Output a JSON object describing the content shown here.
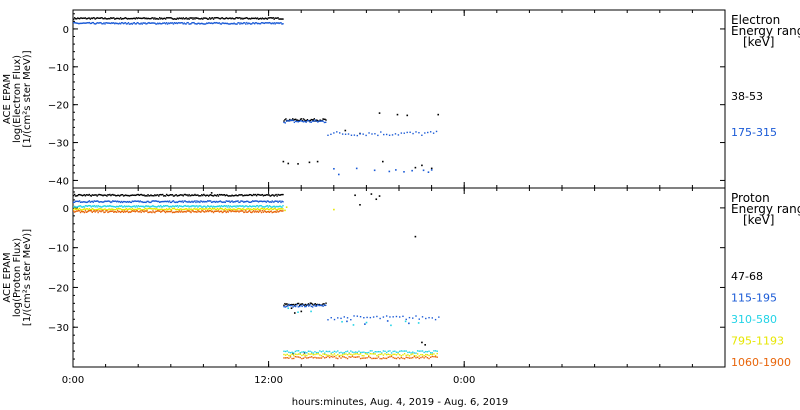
{
  "xlabel": "hours:minutes, Aug.  4, 2019 - Aug.  6, 2019",
  "chart_data": [
    {
      "type": "scatter",
      "name": "electron-panel",
      "ylabel_lines": [
        "ACE EPAM",
        "log(Electron Flux)",
        "[1/(cm²s ster MeV)]"
      ],
      "xlim": [
        0,
        40
      ],
      "ylim": [
        -42,
        5
      ],
      "x_ticks": [
        {
          "value": 0,
          "label": "0:00"
        },
        {
          "value": 12,
          "label": "12:00"
        },
        {
          "value": 24,
          "label": "0:00"
        }
      ],
      "y_ticks": [
        0,
        -10,
        -20,
        -30,
        -40
      ],
      "y_tick_labels": [
        "0",
        "−10",
        "−20",
        "−30",
        "−40"
      ],
      "legend_title_lines": [
        "Electron",
        "Energy ranges",
        "[keV]"
      ],
      "series": [
        {
          "name": "38-53",
          "color": "#000000",
          "segments": [
            {
              "x0": 0.0,
              "x1": 12.9,
              "y": 2.8,
              "jitter": 0.2,
              "step": 0.06
            },
            {
              "x0": 12.9,
              "x1": 15.5,
              "y": -24.0,
              "jitter": 0.3,
              "step": 0.06
            }
          ],
          "points": [
            [
              12.9,
              -35
            ],
            [
              13.2,
              -35.5
            ],
            [
              13.8,
              -35.6
            ],
            [
              14.5,
              -35.2
            ],
            [
              15.0,
              -35.0
            ],
            [
              16.7,
              -26.8
            ],
            [
              17.6,
              -27.6
            ],
            [
              18.8,
              -22.2
            ],
            [
              19.0,
              -35.0
            ],
            [
              19.9,
              -22.6
            ],
            [
              20.5,
              -22.8
            ],
            [
              21.0,
              -36.6
            ],
            [
              21.4,
              -36.0
            ],
            [
              22.0,
              -36.8
            ],
            [
              22.4,
              -22.6
            ]
          ]
        },
        {
          "name": "175-315",
          "color": "#1a5ad6",
          "segments": [
            {
              "x0": 0.0,
              "x1": 12.9,
              "y": 1.5,
              "jitter": 0.2,
              "step": 0.06
            },
            {
              "x0": 12.9,
              "x1": 15.5,
              "y": -24.4,
              "jitter": 0.4,
              "step": 0.08
            },
            {
              "x0": 15.6,
              "x1": 22.4,
              "y": -27.6,
              "jitter": 0.6,
              "step": 0.18
            }
          ],
          "points": [
            [
              16.0,
              -36.9
            ],
            [
              16.3,
              -38.4
            ],
            [
              17.4,
              -36.8
            ],
            [
              18.5,
              -37.3
            ],
            [
              19.4,
              -37.6
            ],
            [
              19.8,
              -37.2
            ],
            [
              20.3,
              -37.7
            ],
            [
              20.8,
              -37.4
            ],
            [
              21.5,
              -37.3
            ],
            [
              21.8,
              -37.8
            ],
            [
              22.0,
              -37.2
            ]
          ]
        }
      ]
    },
    {
      "type": "scatter",
      "name": "proton-panel",
      "ylabel_lines": [
        "ACE EPAM",
        "log(Proton Flux)",
        "[1/(cm²s ster MeV)]"
      ],
      "xlim": [
        0,
        40
      ],
      "ylim": [
        -40,
        5
      ],
      "x_ticks": [
        {
          "value": 0,
          "label": "0:00"
        },
        {
          "value": 12,
          "label": "12:00"
        },
        {
          "value": 24,
          "label": "0:00"
        }
      ],
      "y_ticks": [
        0,
        -10,
        -20,
        -30
      ],
      "y_tick_labels": [
        "0",
        "−10",
        "−20",
        "−30"
      ],
      "legend_title_lines": [
        "Proton",
        "Energy ranges",
        "[keV]"
      ],
      "series": [
        {
          "name": "47-68",
          "color": "#000000",
          "segments": [
            {
              "x0": 0.0,
              "x1": 12.9,
              "y": 3.2,
              "jitter": 0.2,
              "step": 0.06
            },
            {
              "x0": 12.9,
              "x1": 15.5,
              "y": -24.2,
              "jitter": 0.3,
              "step": 0.06
            }
          ],
          "points": [
            [
              8.5,
              3.8
            ],
            [
              13.4,
              -25.2
            ],
            [
              13.6,
              -26.4
            ],
            [
              14.0,
              -26.0
            ],
            [
              17.3,
              3.2
            ],
            [
              17.6,
              0.8
            ],
            [
              18.3,
              3.5
            ],
            [
              18.6,
              2.2
            ],
            [
              18.8,
              3.0
            ],
            [
              21.0,
              -7.2
            ],
            [
              21.4,
              -33.8
            ],
            [
              21.6,
              -34.4
            ],
            [
              13.5,
              -36.6
            ],
            [
              14.2,
              -36.4
            ]
          ]
        },
        {
          "name": "115-195",
          "color": "#1a5ad6",
          "segments": [
            {
              "x0": 0.0,
              "x1": 12.9,
              "y": 1.6,
              "jitter": 0.2,
              "step": 0.06
            },
            {
              "x0": 12.9,
              "x1": 15.5,
              "y": -24.6,
              "jitter": 0.3,
              "step": 0.08
            },
            {
              "x0": 15.6,
              "x1": 22.4,
              "y": -27.6,
              "jitter": 0.5,
              "step": 0.2
            }
          ],
          "points": [
            [
              16.8,
              -28.5
            ],
            [
              17.9,
              -29.2
            ],
            [
              19.3,
              -28.4
            ],
            [
              20.6,
              -29.0
            ]
          ]
        },
        {
          "name": "310-580",
          "color": "#22d3e6",
          "segments": [
            {
              "x0": 0.0,
              "x1": 12.9,
              "y": 0.4,
              "jitter": 0.2,
              "step": 0.06
            },
            {
              "x0": 12.9,
              "x1": 22.4,
              "y": -36.2,
              "jitter": 0.3,
              "step": 0.1
            }
          ],
          "points": [
            [
              13.2,
              -25.2
            ],
            [
              13.8,
              -26.2
            ],
            [
              14.6,
              -26.0
            ],
            [
              16.5,
              -28.6
            ],
            [
              17.2,
              -29.4
            ],
            [
              18.0,
              -28.8
            ],
            [
              19.5,
              -29.5
            ],
            [
              20.4,
              -28.5
            ],
            [
              21.2,
              -28.9
            ]
          ]
        },
        {
          "name": "795-1193",
          "color": "#e6e600",
          "segments": [
            {
              "x0": 0.0,
              "x1": 12.9,
              "y": -0.3,
              "jitter": 0.2,
              "step": 0.06
            },
            {
              "x0": 12.9,
              "x1": 22.4,
              "y": -36.9,
              "jitter": 0.3,
              "step": 0.1
            }
          ],
          "points": [
            [
              13.0,
              -0.6
            ],
            [
              13.1,
              0.2
            ],
            [
              16.0,
              -0.4
            ]
          ]
        },
        {
          "name": "1060-1900",
          "color": "#e8650a",
          "segments": [
            {
              "x0": 0.0,
              "x1": 12.9,
              "y": -0.9,
              "jitter": 0.25,
              "step": 0.06
            },
            {
              "x0": 12.9,
              "x1": 22.4,
              "y": -37.6,
              "jitter": 0.3,
              "step": 0.1
            }
          ],
          "points": []
        }
      ]
    }
  ]
}
